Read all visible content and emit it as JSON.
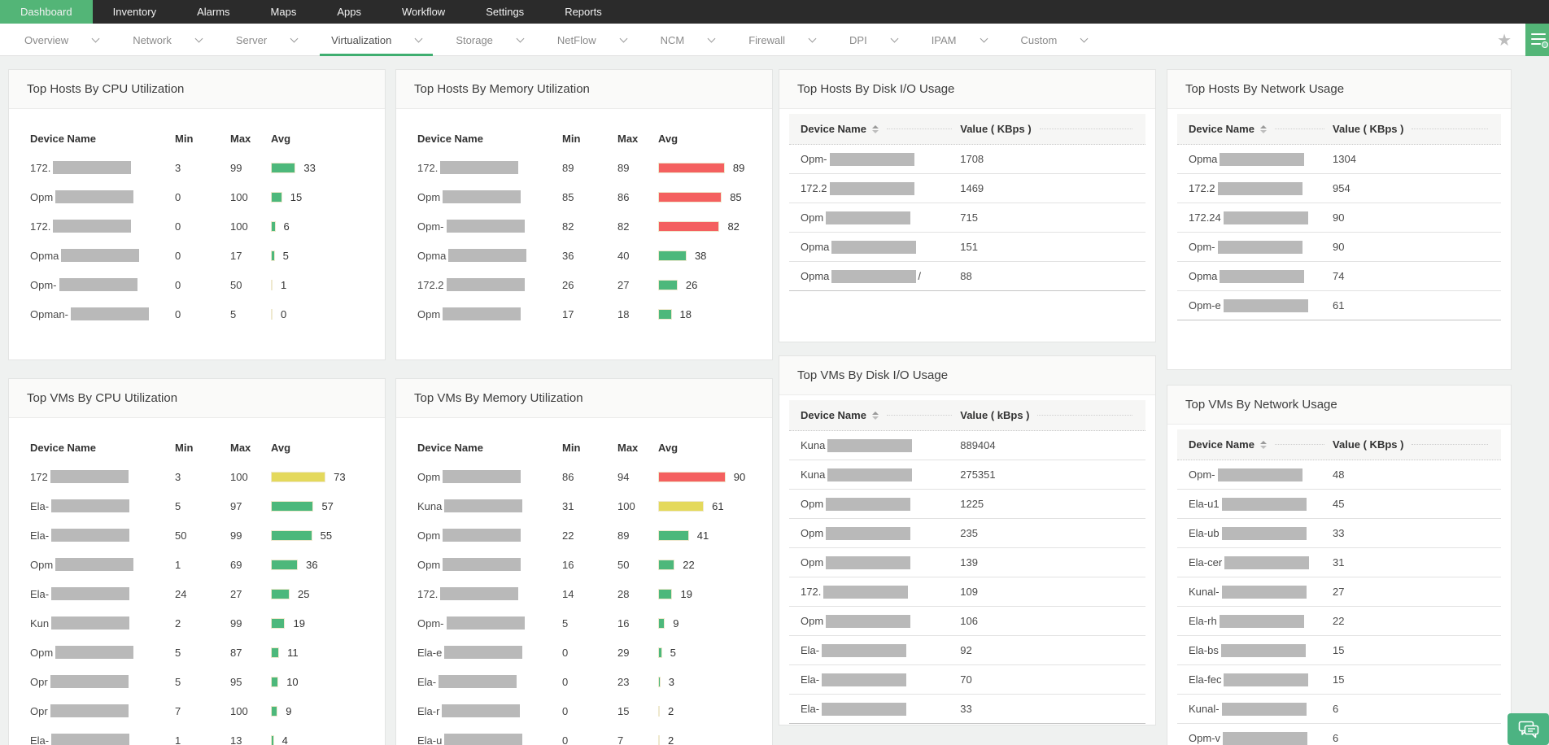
{
  "topnav": {
    "items": [
      {
        "label": "Dashboard",
        "active": true
      },
      {
        "label": "Inventory",
        "active": false
      },
      {
        "label": "Alarms",
        "active": false
      },
      {
        "label": "Maps",
        "active": false
      },
      {
        "label": "Apps",
        "active": false
      },
      {
        "label": "Workflow",
        "active": false
      },
      {
        "label": "Settings",
        "active": false
      },
      {
        "label": "Reports",
        "active": false
      }
    ]
  },
  "subnav": {
    "tabs": [
      {
        "label": "Overview",
        "active": false
      },
      {
        "label": "Network",
        "active": false
      },
      {
        "label": "Server",
        "active": false
      },
      {
        "label": "Virtualization",
        "active": true
      },
      {
        "label": "Storage",
        "active": false
      },
      {
        "label": "NetFlow",
        "active": false
      },
      {
        "label": "NCM",
        "active": false
      },
      {
        "label": "Firewall",
        "active": false
      },
      {
        "label": "DPI",
        "active": false
      },
      {
        "label": "IPAM",
        "active": false
      },
      {
        "label": "Custom",
        "active": false
      }
    ],
    "icons": [
      "star-icon",
      "quick-menu-icon"
    ]
  },
  "widgets": [
    {
      "id": "hosts-cpu",
      "title": "Top Hosts By CPU Utilization",
      "type": "minmax",
      "columns": [
        "Device Name",
        "Min",
        "Max",
        "Avg"
      ],
      "rows": [
        {
          "prefix": "172.",
          "min": "3",
          "max": "99",
          "avg": 33,
          "color": "green"
        },
        {
          "prefix": "Opm",
          "min": "0",
          "max": "100",
          "avg": 15,
          "color": "green"
        },
        {
          "prefix": "172.",
          "min": "0",
          "max": "100",
          "avg": 6,
          "color": "green"
        },
        {
          "prefix": "Opma",
          "min": "0",
          "max": "17",
          "avg": 5,
          "color": "green"
        },
        {
          "prefix": "Opm-",
          "min": "0",
          "max": "50",
          "avg": 1,
          "color": "green"
        },
        {
          "prefix": "Opman-",
          "min": "0",
          "max": "5",
          "avg": 0,
          "color": "green"
        }
      ]
    },
    {
      "id": "hosts-mem",
      "title": "Top Hosts By Memory Utilization",
      "type": "minmax",
      "columns": [
        "Device Name",
        "Min",
        "Max",
        "Avg"
      ],
      "rows": [
        {
          "prefix": "172.",
          "min": "89",
          "max": "89",
          "avg": 89,
          "color": "red"
        },
        {
          "prefix": "Opm",
          "min": "85",
          "max": "86",
          "avg": 85,
          "color": "red"
        },
        {
          "prefix": "Opm-",
          "min": "82",
          "max": "82",
          "avg": 82,
          "color": "red"
        },
        {
          "prefix": "Opma",
          "min": "36",
          "max": "40",
          "avg": 38,
          "color": "green"
        },
        {
          "prefix": "172.2",
          "min": "26",
          "max": "27",
          "avg": 26,
          "color": "green"
        },
        {
          "prefix": "Opm",
          "min": "17",
          "max": "18",
          "avg": 18,
          "color": "green"
        }
      ]
    },
    {
      "id": "hosts-disk",
      "title": "Top Hosts By Disk I/O Usage",
      "type": "value",
      "columns": [
        "Device Name",
        "Value ( KBps )"
      ],
      "rows": [
        {
          "prefix": "Opm-",
          "value": "1708"
        },
        {
          "prefix": "172.2",
          "value": "1469"
        },
        {
          "prefix": "Opm",
          "value": "715"
        },
        {
          "prefix": "Opma",
          "value": "151"
        },
        {
          "prefix": "Opma",
          "suffix": "/",
          "value": "88"
        }
      ]
    },
    {
      "id": "hosts-net",
      "title": "Top Hosts By Network Usage",
      "type": "value",
      "columns": [
        "Device Name",
        "Value ( KBps )"
      ],
      "rows": [
        {
          "prefix": "Opma",
          "value": "1304"
        },
        {
          "prefix": "172.2",
          "value": "954"
        },
        {
          "prefix": "172.24",
          "value": "90"
        },
        {
          "prefix": "Opm-",
          "value": "90"
        },
        {
          "prefix": "Opma",
          "value": "74"
        },
        {
          "prefix": "Opm-e",
          "value": "61"
        }
      ]
    },
    {
      "id": "vms-cpu",
      "title": "Top VMs By CPU Utilization",
      "type": "minmax",
      "columns": [
        "Device Name",
        "Min",
        "Max",
        "Avg"
      ],
      "rows": [
        {
          "prefix": "172",
          "min": "3",
          "max": "100",
          "avg": 73,
          "color": "yellow"
        },
        {
          "prefix": "Ela-",
          "min": "5",
          "max": "97",
          "avg": 57,
          "color": "green"
        },
        {
          "prefix": "Ela-",
          "min": "50",
          "max": "99",
          "avg": 55,
          "color": "green"
        },
        {
          "prefix": "Opm",
          "min": "1",
          "max": "69",
          "avg": 36,
          "color": "green"
        },
        {
          "prefix": "Ela-",
          "min": "24",
          "max": "27",
          "avg": 25,
          "color": "green"
        },
        {
          "prefix": "Kun",
          "min": "2",
          "max": "99",
          "avg": 19,
          "color": "green"
        },
        {
          "prefix": "Opm",
          "min": "5",
          "max": "87",
          "avg": 11,
          "color": "green"
        },
        {
          "prefix": "Opr",
          "min": "5",
          "max": "95",
          "avg": 10,
          "color": "green"
        },
        {
          "prefix": "Opr",
          "min": "7",
          "max": "100",
          "avg": 9,
          "color": "green"
        },
        {
          "prefix": "Ela-",
          "min": "1",
          "max": "13",
          "avg": 4,
          "color": "green"
        }
      ]
    },
    {
      "id": "vms-mem",
      "title": "Top VMs By Memory Utilization",
      "type": "minmax",
      "columns": [
        "Device Name",
        "Min",
        "Max",
        "Avg"
      ],
      "rows": [
        {
          "prefix": "Opm",
          "min": "86",
          "max": "94",
          "avg": 90,
          "color": "red"
        },
        {
          "prefix": "Kuna",
          "min": "31",
          "max": "100",
          "avg": 61,
          "color": "yellow"
        },
        {
          "prefix": "Opm",
          "min": "22",
          "max": "89",
          "avg": 41,
          "color": "green"
        },
        {
          "prefix": "Opm",
          "min": "16",
          "max": "50",
          "avg": 22,
          "color": "green"
        },
        {
          "prefix": "172.",
          "min": "14",
          "max": "28",
          "avg": 19,
          "color": "green"
        },
        {
          "prefix": "Opm-",
          "min": "5",
          "max": "16",
          "avg": 9,
          "color": "green"
        },
        {
          "prefix": "Ela-e",
          "min": "0",
          "max": "29",
          "avg": 5,
          "color": "green"
        },
        {
          "prefix": "Ela-",
          "min": "0",
          "max": "23",
          "avg": 3,
          "color": "green"
        },
        {
          "prefix": "Ela-r",
          "min": "0",
          "max": "15",
          "avg": 2,
          "color": "green"
        },
        {
          "prefix": "Ela-u",
          "min": "0",
          "max": "7",
          "avg": 2,
          "color": "green"
        }
      ]
    },
    {
      "id": "vms-disk",
      "title": "Top VMs By Disk I/O Usage",
      "type": "value",
      "columns": [
        "Device Name",
        "Value ( kBps )"
      ],
      "rows": [
        {
          "prefix": "Kuna",
          "value": "889404"
        },
        {
          "prefix": "Kuna",
          "value": "275351"
        },
        {
          "prefix": "Opm",
          "value": "1225"
        },
        {
          "prefix": "Opm",
          "value": "235"
        },
        {
          "prefix": "Opm",
          "value": "139"
        },
        {
          "prefix": "172.",
          "value": "109"
        },
        {
          "prefix": "Opm",
          "value": "106"
        },
        {
          "prefix": "Ela-",
          "value": "92"
        },
        {
          "prefix": "Ela-",
          "value": "70"
        },
        {
          "prefix": "Ela-",
          "value": "33"
        }
      ]
    },
    {
      "id": "vms-net",
      "title": "Top VMs By Network Usage",
      "type": "value",
      "columns": [
        "Device Name",
        "Value ( KBps )"
      ],
      "rows": [
        {
          "prefix": "Opm-",
          "value": "48"
        },
        {
          "prefix": "Ela-u1",
          "value": "45"
        },
        {
          "prefix": "Ela-ub",
          "value": "33"
        },
        {
          "prefix": "Ela-cer",
          "value": "31"
        },
        {
          "prefix": "Kunal-",
          "value": "27"
        },
        {
          "prefix": "Ela-rh",
          "value": "22"
        },
        {
          "prefix": "Ela-bs",
          "value": "15"
        },
        {
          "prefix": "Ela-fec",
          "value": "15"
        },
        {
          "prefix": "Kunal-",
          "value": "6"
        },
        {
          "prefix": "Opm-v",
          "value": "6"
        }
      ]
    }
  ],
  "floating": {
    "chat_icon": "chat-bubbles-icon"
  },
  "colors": {
    "accent_green": "#53b577",
    "tab_underline_green": "#3fae70",
    "bar_green": "#4db87b",
    "bar_red": "#f4605f",
    "bar_yellow": "#e4d95c",
    "redaction_gray": "#b9b9b9",
    "topnav_bg": "#2b2b2b",
    "page_bg": "#eff1f0"
  }
}
